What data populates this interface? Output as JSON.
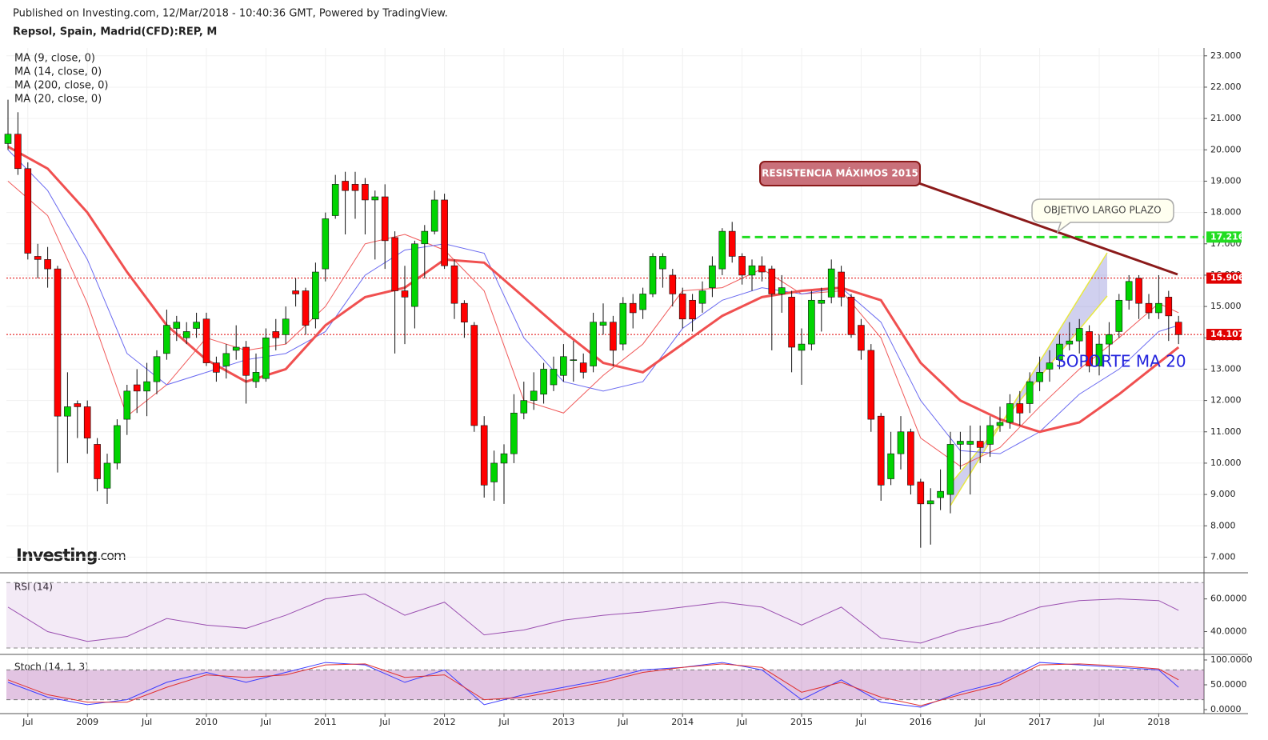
{
  "chart_data": {
    "type": "candlestick",
    "published": "Published on Investing.com, 12/Mar/2018 - 10:40:36 GMT, Powered by TradingView.",
    "title": "Repsol, Spain, Madrid(CFD):REP, M",
    "up_color": "#00d400",
    "down_color": "#ff0000",
    "x": [
      "2008-05",
      "2008-06",
      "2008-07",
      "2008-08",
      "2008-09",
      "2008-10",
      "2008-11",
      "2008-12",
      "2009-01",
      "2009-02",
      "2009-03",
      "2009-04",
      "2009-05",
      "2009-06",
      "2009-07",
      "2009-08",
      "2009-09",
      "2009-10",
      "2009-11",
      "2009-12",
      "2010-01",
      "2010-02",
      "2010-03",
      "2010-04",
      "2010-05",
      "2010-06",
      "2010-07",
      "2010-08",
      "2010-09",
      "2010-10",
      "2010-11",
      "2010-12",
      "2011-01",
      "2011-02",
      "2011-03",
      "2011-04",
      "2011-05",
      "2011-06",
      "2011-07",
      "2011-08",
      "2011-09",
      "2011-10",
      "2011-11",
      "2011-12",
      "2012-01",
      "2012-02",
      "2012-03",
      "2012-04",
      "2012-05",
      "2012-06",
      "2012-07",
      "2012-08",
      "2012-09",
      "2012-10",
      "2012-11",
      "2012-12",
      "2013-01",
      "2013-02",
      "2013-03",
      "2013-04",
      "2013-05",
      "2013-06",
      "2013-07",
      "2013-08",
      "2013-09",
      "2013-10",
      "2013-11",
      "2013-12",
      "2014-01",
      "2014-02",
      "2014-03",
      "2014-04",
      "2014-05",
      "2014-06",
      "2014-07",
      "2014-08",
      "2014-09",
      "2014-10",
      "2014-11",
      "2014-12",
      "2015-01",
      "2015-02",
      "2015-03",
      "2015-04",
      "2015-05",
      "2015-06",
      "2015-07",
      "2015-08",
      "2015-09",
      "2015-10",
      "2015-11",
      "2015-12",
      "2016-01",
      "2016-02",
      "2016-03",
      "2016-04",
      "2016-05",
      "2016-06",
      "2016-07",
      "2016-08",
      "2016-09",
      "2016-10",
      "2016-11",
      "2016-12",
      "2017-01",
      "2017-02",
      "2017-03",
      "2017-04",
      "2017-05",
      "2017-06",
      "2017-07",
      "2017-08",
      "2017-09",
      "2017-10",
      "2017-11",
      "2017-12",
      "2018-01",
      "2018-02",
      "2018-03"
    ],
    "ohlc": [
      [
        20.2,
        21.6,
        20.0,
        20.5
      ],
      [
        20.5,
        21.2,
        19.2,
        19.4
      ],
      [
        19.4,
        19.6,
        16.5,
        16.7
      ],
      [
        16.6,
        17.0,
        15.9,
        16.5
      ],
      [
        16.5,
        16.9,
        15.6,
        16.2
      ],
      [
        16.2,
        16.3,
        9.7,
        11.5
      ],
      [
        11.5,
        12.9,
        10.0,
        11.8
      ],
      [
        11.9,
        12.0,
        10.8,
        11.8
      ],
      [
        11.8,
        12.0,
        10.3,
        10.8
      ],
      [
        10.6,
        10.8,
        9.1,
        9.5
      ],
      [
        9.2,
        10.3,
        8.7,
        10.0
      ],
      [
        10.0,
        11.4,
        9.8,
        11.2
      ],
      [
        11.4,
        12.5,
        10.9,
        12.3
      ],
      [
        12.5,
        13.0,
        11.6,
        12.3
      ],
      [
        12.3,
        13.2,
        11.5,
        12.6
      ],
      [
        12.6,
        13.6,
        12.2,
        13.4
      ],
      [
        13.5,
        14.9,
        13.3,
        14.4
      ],
      [
        14.3,
        14.7,
        13.9,
        14.5
      ],
      [
        14.0,
        14.5,
        13.8,
        14.2
      ],
      [
        14.3,
        14.8,
        14.0,
        14.5
      ],
      [
        14.6,
        14.8,
        13.1,
        13.2
      ],
      [
        13.2,
        13.4,
        12.6,
        12.9
      ],
      [
        13.1,
        13.8,
        12.7,
        13.5
      ],
      [
        13.6,
        14.4,
        13.3,
        13.7
      ],
      [
        13.7,
        13.9,
        11.9,
        12.8
      ],
      [
        12.6,
        13.5,
        12.4,
        12.9
      ],
      [
        12.7,
        14.3,
        12.6,
        14.0
      ],
      [
        14.2,
        14.6,
        13.6,
        14.0
      ],
      [
        14.1,
        15.0,
        13.8,
        14.6
      ],
      [
        15.5,
        15.9,
        15.0,
        15.4
      ],
      [
        15.5,
        15.6,
        14.1,
        14.4
      ],
      [
        14.6,
        16.4,
        14.3,
        16.1
      ],
      [
        16.2,
        18.0,
        15.8,
        17.8
      ],
      [
        17.9,
        19.2,
        17.8,
        18.9
      ],
      [
        19.0,
        19.3,
        17.3,
        18.7
      ],
      [
        18.9,
        19.3,
        17.8,
        18.7
      ],
      [
        18.9,
        19.1,
        17.3,
        18.4
      ],
      [
        18.4,
        18.7,
        16.5,
        18.5
      ],
      [
        18.5,
        18.9,
        16.2,
        17.1
      ],
      [
        17.2,
        17.4,
        13.5,
        15.5
      ],
      [
        15.5,
        16.3,
        13.8,
        15.3
      ],
      [
        15.0,
        17.1,
        14.3,
        17.0
      ],
      [
        17.0,
        17.6,
        15.9,
        17.4
      ],
      [
        17.4,
        18.7,
        17.3,
        18.4
      ],
      [
        18.4,
        18.6,
        16.2,
        16.3
      ],
      [
        16.3,
        16.5,
        14.6,
        15.1
      ],
      [
        15.1,
        15.2,
        14.0,
        14.5
      ],
      [
        14.4,
        14.5,
        11.0,
        11.2
      ],
      [
        11.2,
        11.5,
        8.9,
        9.3
      ],
      [
        9.4,
        10.4,
        8.8,
        10.0
      ],
      [
        10.0,
        10.6,
        8.7,
        10.3
      ],
      [
        10.3,
        12.2,
        10.0,
        11.6
      ],
      [
        11.6,
        12.6,
        11.4,
        12.0
      ],
      [
        12.0,
        12.9,
        11.7,
        12.3
      ],
      [
        12.2,
        13.2,
        11.9,
        13.0
      ],
      [
        12.5,
        13.4,
        12.3,
        13.0
      ],
      [
        12.8,
        13.8,
        12.6,
        13.4
      ],
      [
        13.3,
        13.9,
        12.6,
        13.3
      ],
      [
        13.2,
        13.5,
        12.7,
        12.9
      ],
      [
        13.1,
        14.8,
        12.9,
        14.5
      ],
      [
        14.4,
        15.1,
        14.1,
        14.5
      ],
      [
        14.5,
        14.7,
        13.1,
        13.6
      ],
      [
        13.8,
        15.3,
        13.6,
        15.1
      ],
      [
        15.1,
        15.4,
        14.3,
        14.8
      ],
      [
        14.9,
        15.6,
        14.6,
        15.4
      ],
      [
        15.4,
        16.7,
        15.3,
        16.6
      ],
      [
        16.2,
        16.7,
        15.6,
        16.6
      ],
      [
        16.0,
        16.2,
        15.0,
        15.4
      ],
      [
        15.4,
        15.6,
        14.3,
        14.6
      ],
      [
        15.2,
        15.4,
        14.2,
        14.6
      ],
      [
        15.1,
        15.8,
        14.8,
        15.5
      ],
      [
        15.6,
        16.6,
        15.3,
        16.3
      ],
      [
        16.2,
        17.5,
        16.0,
        17.4
      ],
      [
        17.4,
        17.7,
        16.4,
        16.6
      ],
      [
        16.6,
        16.7,
        15.7,
        16.0
      ],
      [
        16.0,
        16.5,
        15.5,
        16.3
      ],
      [
        16.3,
        16.6,
        15.8,
        16.1
      ],
      [
        16.2,
        16.3,
        13.6,
        15.4
      ],
      [
        15.4,
        16.0,
        14.8,
        15.6
      ],
      [
        15.3,
        15.5,
        12.9,
        13.7
      ],
      [
        13.6,
        14.3,
        12.5,
        13.8
      ],
      [
        13.8,
        15.5,
        13.6,
        15.2
      ],
      [
        15.1,
        15.6,
        14.2,
        15.2
      ],
      [
        15.3,
        16.5,
        15.1,
        16.2
      ],
      [
        16.1,
        16.3,
        15.0,
        15.3
      ],
      [
        15.3,
        15.4,
        14.0,
        14.1
      ],
      [
        14.4,
        14.6,
        13.3,
        13.6
      ],
      [
        13.6,
        13.8,
        11.0,
        11.4
      ],
      [
        11.5,
        11.6,
        8.8,
        9.3
      ],
      [
        9.5,
        11.0,
        9.3,
        10.3
      ],
      [
        10.3,
        11.5,
        9.8,
        11.0
      ],
      [
        11.0,
        11.1,
        9.0,
        9.3
      ],
      [
        9.4,
        9.5,
        7.3,
        8.7
      ],
      [
        8.7,
        9.2,
        7.4,
        8.8
      ],
      [
        8.9,
        9.8,
        8.5,
        9.1
      ],
      [
        9.0,
        11.0,
        8.4,
        10.6
      ],
      [
        10.6,
        11.0,
        9.8,
        10.7
      ],
      [
        10.6,
        11.2,
        9.0,
        10.7
      ],
      [
        10.7,
        11.2,
        10.0,
        10.5
      ],
      [
        10.6,
        11.5,
        10.2,
        11.2
      ],
      [
        11.2,
        11.8,
        11.0,
        11.3
      ],
      [
        11.3,
        12.2,
        11.1,
        11.9
      ],
      [
        11.9,
        12.3,
        11.2,
        11.6
      ],
      [
        11.9,
        12.9,
        11.6,
        12.6
      ],
      [
        12.6,
        13.4,
        12.3,
        12.9
      ],
      [
        13.0,
        13.6,
        12.6,
        13.2
      ],
      [
        13.3,
        14.1,
        13.0,
        13.8
      ],
      [
        13.8,
        14.5,
        13.6,
        13.9
      ],
      [
        13.9,
        14.6,
        13.5,
        14.3
      ],
      [
        14.2,
        14.4,
        12.9,
        13.1
      ],
      [
        13.1,
        14.1,
        12.8,
        13.8
      ],
      [
        13.8,
        14.5,
        13.4,
        14.1
      ],
      [
        14.2,
        15.4,
        14.0,
        15.2
      ],
      [
        15.2,
        16.0,
        14.9,
        15.8
      ],
      [
        15.9,
        16.0,
        14.6,
        15.1
      ],
      [
        15.1,
        15.4,
        14.6,
        14.8
      ],
      [
        14.8,
        16.0,
        14.6,
        15.1
      ],
      [
        15.3,
        15.5,
        13.9,
        14.7
      ],
      [
        14.5,
        14.7,
        13.8,
        14.1
      ]
    ],
    "ylim": [
      6.5,
      23.25
    ],
    "yticks": [
      {
        "value": 7,
        "label": "7.000"
      },
      {
        "value": 8,
        "label": "8.000"
      },
      {
        "value": 9,
        "label": "9.000"
      },
      {
        "value": 10,
        "label": "10.000"
      },
      {
        "value": 11,
        "label": "11.000"
      },
      {
        "value": 12,
        "label": "12.000"
      },
      {
        "value": 13,
        "label": "13.000"
      },
      {
        "value": 14,
        "label": "14.000"
      },
      {
        "value": 15,
        "label": "15.000"
      },
      {
        "value": 16,
        "label": "16.000"
      },
      {
        "value": 17,
        "label": "17.000"
      },
      {
        "value": 18,
        "label": "18.000"
      },
      {
        "value": 19,
        "label": "19.000"
      },
      {
        "value": 20,
        "label": "20.000"
      },
      {
        "value": 21,
        "label": "21.000"
      },
      {
        "value": 22,
        "label": "22.000"
      },
      {
        "value": 23,
        "label": "23.000"
      }
    ],
    "xticks": [
      {
        "value": "2008-07",
        "label": "Jul"
      },
      {
        "value": "2009-01",
        "label": "2009"
      },
      {
        "value": "2009-07",
        "label": "Jul"
      },
      {
        "value": "2010-01",
        "label": "2010"
      },
      {
        "value": "2010-07",
        "label": "Jul"
      },
      {
        "value": "2011-01",
        "label": "2011"
      },
      {
        "value": "2011-07",
        "label": "Jul"
      },
      {
        "value": "2012-01",
        "label": "2012"
      },
      {
        "value": "2012-07",
        "label": "Jul"
      },
      {
        "value": "2013-01",
        "label": "2013"
      },
      {
        "value": "2013-07",
        "label": "Jul"
      },
      {
        "value": "2014-01",
        "label": "2014"
      },
      {
        "value": "2014-07",
        "label": "Jul"
      },
      {
        "value": "2015-01",
        "label": "2015"
      },
      {
        "value": "2015-07",
        "label": "Jul"
      },
      {
        "value": "2016-01",
        "label": "2016"
      },
      {
        "value": "2016-07",
        "label": "Jul"
      },
      {
        "value": "2017-01",
        "label": "2017"
      },
      {
        "value": "2017-07",
        "label": "Jul"
      },
      {
        "value": "2018-01",
        "label": "2018"
      }
    ],
    "grid": true,
    "overlays": {
      "x": [
        "2008-05",
        "2008-09",
        "2009-01",
        "2009-05",
        "2009-09",
        "2010-01",
        "2010-05",
        "2010-09",
        "2011-01",
        "2011-05",
        "2011-09",
        "2012-01",
        "2012-05",
        "2012-09",
        "2013-01",
        "2013-05",
        "2013-09",
        "2014-01",
        "2014-05",
        "2014-09",
        "2015-01",
        "2015-05",
        "2015-09",
        "2016-01",
        "2016-05",
        "2016-09",
        "2017-01",
        "2017-05",
        "2017-09",
        "2018-01",
        "2018-03"
      ],
      "series": [
        {
          "name": "MA (9, close, 0)",
          "color": "#f05a5a",
          "width": 1,
          "values": [
            19.0,
            17.9,
            15.1,
            11.5,
            12.5,
            14.0,
            13.6,
            13.8,
            15.0,
            17.0,
            17.3,
            16.8,
            15.5,
            12.0,
            11.6,
            12.8,
            13.8,
            15.5,
            15.6,
            16.2,
            15.4,
            15.5,
            14.0,
            10.8,
            9.9,
            10.5,
            11.8,
            13.0,
            14.0,
            15.1,
            14.8
          ]
        },
        {
          "name": "MA (14, close, 0)",
          "color": "#6a6af0",
          "width": 1,
          "values": [
            20.0,
            18.7,
            16.5,
            13.5,
            12.5,
            12.9,
            13.3,
            13.5,
            14.2,
            16.0,
            16.8,
            17.0,
            16.7,
            14.0,
            12.6,
            12.3,
            12.6,
            14.3,
            15.2,
            15.6,
            15.4,
            15.6,
            14.5,
            12.0,
            10.4,
            10.3,
            11.0,
            12.2,
            13.0,
            14.2,
            14.4
          ]
        },
        {
          "name": "MA (200, close, 0)",
          "color": "#888888",
          "width": 1,
          "values": [
            null,
            null,
            null,
            null,
            null,
            null,
            null,
            null,
            null,
            null,
            null,
            null,
            null,
            null,
            null,
            null,
            null,
            null,
            null,
            null,
            null,
            null,
            null,
            null,
            null,
            null,
            null,
            null,
            null,
            null,
            null
          ]
        },
        {
          "name": "MA (20, close, 0)",
          "color": "#f05050",
          "width": 3,
          "values": [
            20.1,
            19.4,
            18.0,
            16.1,
            14.4,
            13.3,
            12.6,
            13.0,
            14.4,
            15.3,
            15.6,
            16.5,
            16.4,
            15.3,
            14.2,
            13.2,
            12.9,
            13.8,
            14.7,
            15.3,
            15.5,
            15.6,
            15.2,
            13.2,
            12.0,
            11.4,
            11.0,
            11.3,
            12.2,
            13.2,
            13.7
          ]
        }
      ]
    },
    "price_lines": [
      {
        "value": 17.216,
        "color": "#22dd22",
        "style": "dashed",
        "from": "2014-07"
      },
      {
        "value": 15.906,
        "color": "#e00000",
        "style": "dotted"
      },
      {
        "value": 14.107,
        "color": "#e00000",
        "style": "dotted"
      }
    ],
    "annotations": {
      "resistance": "RESISTENCIA MÁXIMOS 2015",
      "target": "OBJETIVO LARGO PLAZO",
      "support": "SOPORTE MA 20"
    },
    "logo": {
      "brand": "Investing",
      "suffix": ".com"
    },
    "rsi": {
      "label": "RSI (14)",
      "ylim": [
        29,
        75
      ],
      "yticks": [
        {
          "value": 40,
          "label": "40.0000"
        },
        {
          "value": 60,
          "label": "60.0000"
        }
      ],
      "bands": [
        30,
        70
      ],
      "color": "#9a4fb0",
      "values": [
        55,
        40,
        34,
        37,
        48,
        44,
        42,
        50,
        60,
        63,
        50,
        58,
        38,
        41,
        47,
        50,
        52,
        55,
        58,
        55,
        44,
        55,
        36,
        33,
        41,
        46,
        55,
        59,
        60,
        59,
        53
      ]
    },
    "stoch": {
      "label": "Stoch (14, 1, 3)",
      "ylim": [
        -8,
        108
      ],
      "yticks": [
        {
          "value": 0,
          "label": "0.0000"
        },
        {
          "value": 50,
          "label": "50.0000"
        },
        {
          "value": 100,
          "label": "100.0000"
        }
      ],
      "bands": [
        20,
        80
      ],
      "series": [
        {
          "color": "#3c3cff",
          "values": [
            55,
            25,
            10,
            20,
            55,
            75,
            55,
            75,
            95,
            90,
            55,
            80,
            10,
            30,
            45,
            60,
            80,
            85,
            95,
            80,
            20,
            60,
            15,
            5,
            35,
            55,
            95,
            90,
            85,
            80,
            45
          ]
        },
        {
          "color": "#e03030",
          "values": [
            60,
            30,
            15,
            15,
            45,
            70,
            65,
            70,
            90,
            92,
            65,
            70,
            20,
            25,
            40,
            55,
            75,
            85,
            92,
            85,
            35,
            55,
            25,
            8,
            30,
            50,
            90,
            92,
            88,
            82,
            60
          ]
        }
      ]
    }
  }
}
